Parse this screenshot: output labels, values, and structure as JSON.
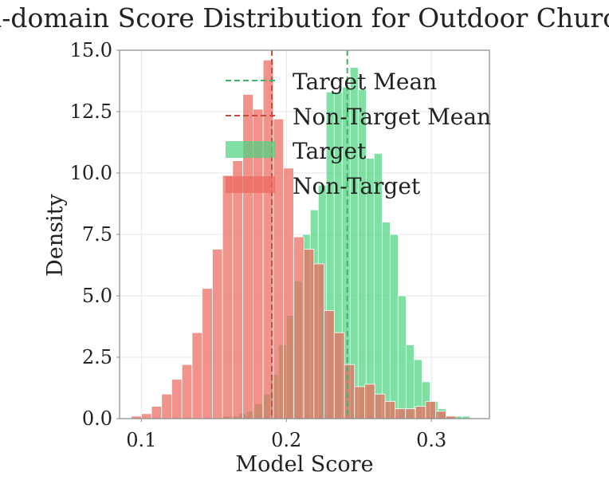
{
  "chart_data": {
    "type": "histogram",
    "title": "In-domain Score Distribution for Outdoor Church",
    "xlabel": "Model Score",
    "ylabel": "Density",
    "xlim": [
      0.085,
      0.34
    ],
    "ylim": [
      0,
      15
    ],
    "xticks": [
      0.1,
      0.2,
      0.3
    ],
    "yticks": [
      0,
      2.5,
      5,
      7.5,
      10,
      12.5,
      15
    ],
    "xtick_labels": [
      "0.1",
      "0.2",
      "0.3"
    ],
    "ytick_labels": [
      "0.0",
      "2.5",
      "5.0",
      "7.5",
      "10.0",
      "12.5",
      "15.0"
    ],
    "grid": true,
    "legend_position": "upper-center",
    "series": [
      {
        "name": "Target",
        "color": "#4fd37f",
        "bins": [
          {
            "x0": 0.1505,
            "x1": 0.156,
            "y": 0.0
          },
          {
            "x0": 0.156,
            "x1": 0.1615,
            "y": 0.1
          },
          {
            "x0": 0.1615,
            "x1": 0.167,
            "y": 0.1
          },
          {
            "x0": 0.167,
            "x1": 0.1725,
            "y": 0.2
          },
          {
            "x0": 0.1725,
            "x1": 0.178,
            "y": 0.3
          },
          {
            "x0": 0.178,
            "x1": 0.1835,
            "y": 0.6
          },
          {
            "x0": 0.1835,
            "x1": 0.189,
            "y": 1.0
          },
          {
            "x0": 0.189,
            "x1": 0.1945,
            "y": 1.8
          },
          {
            "x0": 0.1945,
            "x1": 0.2,
            "y": 3.0
          },
          {
            "x0": 0.2,
            "x1": 0.2055,
            "y": 4.2
          },
          {
            "x0": 0.2055,
            "x1": 0.211,
            "y": 5.6
          },
          {
            "x0": 0.211,
            "x1": 0.2165,
            "y": 7.5
          },
          {
            "x0": 0.2165,
            "x1": 0.222,
            "y": 8.5
          },
          {
            "x0": 0.222,
            "x1": 0.2275,
            "y": 9.5
          },
          {
            "x0": 0.2275,
            "x1": 0.233,
            "y": 13.3
          },
          {
            "x0": 0.233,
            "x1": 0.2385,
            "y": 13.3
          },
          {
            "x0": 0.2385,
            "x1": 0.244,
            "y": 13.5
          },
          {
            "x0": 0.244,
            "x1": 0.2495,
            "y": 14.3
          },
          {
            "x0": 0.2495,
            "x1": 0.255,
            "y": 13.4
          },
          {
            "x0": 0.255,
            "x1": 0.2605,
            "y": 10.6
          },
          {
            "x0": 0.2605,
            "x1": 0.266,
            "y": 10.8
          },
          {
            "x0": 0.266,
            "x1": 0.2715,
            "y": 8.0
          },
          {
            "x0": 0.2715,
            "x1": 0.277,
            "y": 7.5
          },
          {
            "x0": 0.277,
            "x1": 0.2825,
            "y": 5.0
          },
          {
            "x0": 0.2825,
            "x1": 0.288,
            "y": 3.0
          },
          {
            "x0": 0.288,
            "x1": 0.2935,
            "y": 2.4
          },
          {
            "x0": 0.2935,
            "x1": 0.299,
            "y": 1.5
          },
          {
            "x0": 0.299,
            "x1": 0.3045,
            "y": 0.7
          },
          {
            "x0": 0.3045,
            "x1": 0.31,
            "y": 0.4
          },
          {
            "x0": 0.31,
            "x1": 0.3155,
            "y": 0.1
          },
          {
            "x0": 0.3155,
            "x1": 0.321,
            "y": 0.1
          },
          {
            "x0": 0.321,
            "x1": 0.3265,
            "y": 0.1
          }
        ]
      },
      {
        "name": "Non-Target",
        "color": "#ec6a5e",
        "bins": [
          {
            "x0": 0.093,
            "x1": 0.1,
            "y": 0.1
          },
          {
            "x0": 0.1,
            "x1": 0.107,
            "y": 0.2
          },
          {
            "x0": 0.107,
            "x1": 0.114,
            "y": 0.5
          },
          {
            "x0": 0.114,
            "x1": 0.121,
            "y": 1.0
          },
          {
            "x0": 0.121,
            "x1": 0.128,
            "y": 1.6
          },
          {
            "x0": 0.128,
            "x1": 0.135,
            "y": 2.2
          },
          {
            "x0": 0.135,
            "x1": 0.142,
            "y": 3.5
          },
          {
            "x0": 0.142,
            "x1": 0.149,
            "y": 5.3
          },
          {
            "x0": 0.149,
            "x1": 0.156,
            "y": 6.9
          },
          {
            "x0": 0.156,
            "x1": 0.163,
            "y": 9.9
          },
          {
            "x0": 0.163,
            "x1": 0.17,
            "y": 10.5
          },
          {
            "x0": 0.17,
            "x1": 0.177,
            "y": 13.2
          },
          {
            "x0": 0.177,
            "x1": 0.184,
            "y": 12.6
          },
          {
            "x0": 0.184,
            "x1": 0.191,
            "y": 14.6
          },
          {
            "x0": 0.191,
            "x1": 0.198,
            "y": 12.2
          },
          {
            "x0": 0.198,
            "x1": 0.205,
            "y": 10.2
          },
          {
            "x0": 0.205,
            "x1": 0.212,
            "y": 7.4
          },
          {
            "x0": 0.212,
            "x1": 0.219,
            "y": 6.9
          },
          {
            "x0": 0.219,
            "x1": 0.226,
            "y": 6.3
          },
          {
            "x0": 0.226,
            "x1": 0.233,
            "y": 4.4
          },
          {
            "x0": 0.233,
            "x1": 0.24,
            "y": 3.5
          },
          {
            "x0": 0.24,
            "x1": 0.247,
            "y": 2.2
          },
          {
            "x0": 0.247,
            "x1": 0.254,
            "y": 1.3
          },
          {
            "x0": 0.254,
            "x1": 0.261,
            "y": 1.4
          },
          {
            "x0": 0.261,
            "x1": 0.268,
            "y": 1.0
          },
          {
            "x0": 0.268,
            "x1": 0.275,
            "y": 0.7
          },
          {
            "x0": 0.275,
            "x1": 0.282,
            "y": 0.4
          },
          {
            "x0": 0.282,
            "x1": 0.289,
            "y": 0.4
          },
          {
            "x0": 0.289,
            "x1": 0.296,
            "y": 0.5
          },
          {
            "x0": 0.296,
            "x1": 0.303,
            "y": 0.7
          },
          {
            "x0": 0.303,
            "x1": 0.31,
            "y": 0.3
          },
          {
            "x0": 0.31,
            "x1": 0.317,
            "y": 0.1
          }
        ]
      }
    ],
    "mean_lines": [
      {
        "name": "Target Mean",
        "x": 0.242,
        "color": "#3bb76a"
      },
      {
        "name": "Non-Target Mean",
        "x": 0.19,
        "color": "#c94a3f"
      }
    ],
    "legend": [
      {
        "label": "Target Mean",
        "kind": "dashed-line",
        "color": "#3bb76a"
      },
      {
        "label": "Non-Target Mean",
        "kind": "dashed-line",
        "color": "#c94a3f"
      },
      {
        "label": "Target",
        "kind": "patch",
        "color": "#4fd37f"
      },
      {
        "label": "Non-Target",
        "kind": "patch",
        "color": "#ec6a5e"
      }
    ]
  }
}
